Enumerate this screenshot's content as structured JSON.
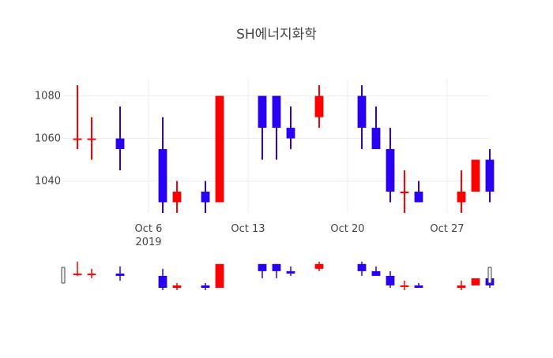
{
  "chart_data": {
    "type": "candlestick",
    "title": "SH에너지화학",
    "xlabel": "",
    "ylabel": "",
    "grid": true,
    "legend": "none",
    "x_range": [
      "2019-09-30",
      "2019-10-30"
    ],
    "y_range": [
      1025,
      1088
    ],
    "x_ticks": [
      {
        "date": "2019-10-06",
        "label": "Oct 6",
        "sublabel": "2019"
      },
      {
        "date": "2019-10-13",
        "label": "Oct 13",
        "sublabel": ""
      },
      {
        "date": "2019-10-20",
        "label": "Oct 20",
        "sublabel": ""
      },
      {
        "date": "2019-10-27",
        "label": "Oct 27",
        "sublabel": ""
      }
    ],
    "y_ticks": [
      1040,
      1060,
      1080
    ],
    "colors": {
      "increasing": "#ff0000",
      "decreasing": "#2a00f5"
    },
    "candles": [
      {
        "date": "2019-10-01",
        "open": 1060,
        "high": 1085,
        "low": 1055,
        "close": 1060
      },
      {
        "date": "2019-10-02",
        "open": 1060,
        "high": 1070,
        "low": 1050,
        "close": 1060
      },
      {
        "date": "2019-10-04",
        "open": 1060,
        "high": 1075,
        "low": 1045,
        "close": 1055
      },
      {
        "date": "2019-10-07",
        "open": 1055,
        "high": 1070,
        "low": 1025,
        "close": 1030
      },
      {
        "date": "2019-10-08",
        "open": 1030,
        "high": 1040,
        "low": 1025,
        "close": 1035
      },
      {
        "date": "2019-10-10",
        "open": 1035,
        "high": 1040,
        "low": 1025,
        "close": 1030
      },
      {
        "date": "2019-10-11",
        "open": 1030,
        "high": 1080,
        "low": 1030,
        "close": 1080
      },
      {
        "date": "2019-10-14",
        "open": 1080,
        "high": 1080,
        "low": 1050,
        "close": 1065
      },
      {
        "date": "2019-10-15",
        "open": 1080,
        "high": 1080,
        "low": 1050,
        "close": 1065
      },
      {
        "date": "2019-10-16",
        "open": 1065,
        "high": 1075,
        "low": 1055,
        "close": 1060
      },
      {
        "date": "2019-10-18",
        "open": 1070,
        "high": 1085,
        "low": 1065,
        "close": 1080
      },
      {
        "date": "2019-10-21",
        "open": 1080,
        "high": 1085,
        "low": 1055,
        "close": 1065
      },
      {
        "date": "2019-10-22",
        "open": 1065,
        "high": 1075,
        "low": 1055,
        "close": 1055
      },
      {
        "date": "2019-10-23",
        "open": 1055,
        "high": 1065,
        "low": 1030,
        "close": 1035
      },
      {
        "date": "2019-10-24",
        "open": 1035,
        "high": 1045,
        "low": 1025,
        "close": 1035
      },
      {
        "date": "2019-10-25",
        "open": 1035,
        "high": 1040,
        "low": 1030,
        "close": 1030
      },
      {
        "date": "2019-10-28",
        "open": 1030,
        "high": 1045,
        "low": 1025,
        "close": 1035
      },
      {
        "date": "2019-10-29",
        "open": 1035,
        "high": 1050,
        "low": 1035,
        "close": 1050
      },
      {
        "date": "2019-10-30",
        "open": 1050,
        "high": 1055,
        "low": 1030,
        "close": 1035
      }
    ]
  }
}
